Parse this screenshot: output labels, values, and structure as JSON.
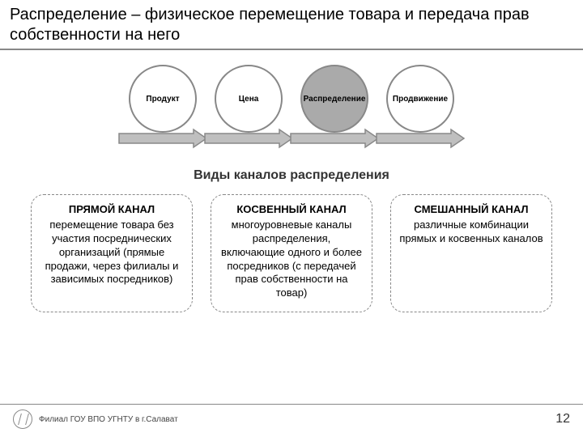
{
  "title": "Распределение – физическое перемещение товара и передача прав собственности на него",
  "circles": [
    {
      "label": "Продукт",
      "filled": false
    },
    {
      "label": "Цена",
      "filled": false
    },
    {
      "label": "Распределение",
      "filled": true
    },
    {
      "label": "Продвижение",
      "filled": false
    }
  ],
  "arrow": {
    "stroke": "#888888",
    "fill": "#bfbfbf",
    "width": 112,
    "height": 26
  },
  "section_title": "Виды каналов распределения",
  "boxes": [
    {
      "title": "ПРЯМОЙ КАНАЛ",
      "text": "перемещение товара без участия посреднических организаций (прямые продажи, через филиалы и зависимых посредников)"
    },
    {
      "title": "КОСВЕННЫЙ КАНАЛ",
      "text": "многоуровневые каналы распределения, включающие одного и более посредников (с передачей прав собственности на товар)"
    },
    {
      "title": "СМЕШАННЫЙ КАНАЛ",
      "text": "различные комбинации прямых и косвенных каналов"
    }
  ],
  "footer": {
    "org": "Филиал ГОУ ВПО УГНТУ в г.Салават",
    "page": "12"
  },
  "colors": {
    "border": "#888888",
    "circle_fill": "#aaaaaa",
    "text": "#000000",
    "bg": "#ffffff"
  }
}
